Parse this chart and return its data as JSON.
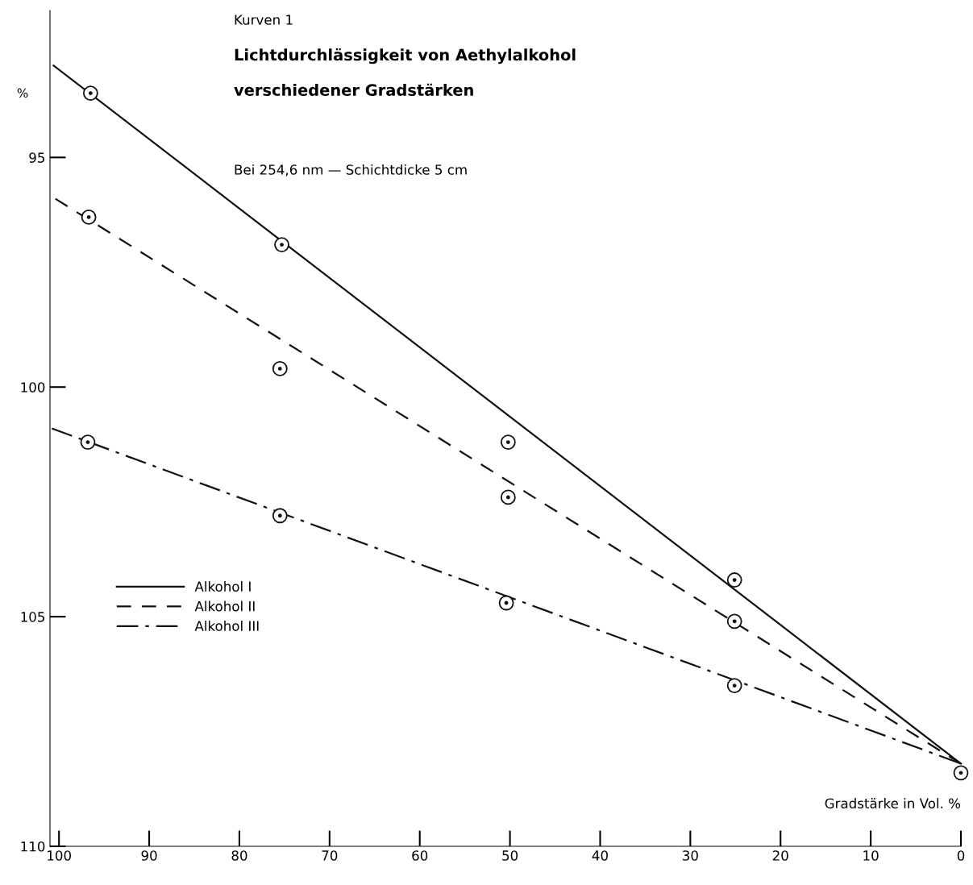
{
  "chart_data": {
    "type": "line",
    "title": "Lichtdurchlässigkeit von Aethylalkohol\n\nverschiedener Gradstärken",
    "subtitle": "Bei 254,6 nm — Schichtdicke 5 cm",
    "annotations": [
      "Kurven 1"
    ],
    "xlabel": "Gradstärke in Vol. %",
    "ylabel": "%",
    "xlim": [
      101,
      0
    ],
    "xticks": [
      100,
      90,
      80,
      70,
      60,
      50,
      40,
      30,
      20,
      10,
      0
    ],
    "ylim": [
      110,
      91.8
    ],
    "yticks": [
      95,
      100,
      105,
      110
    ],
    "grid": false,
    "legend": "bottom left",
    "series": [
      {
        "name": "Alkohol I",
        "color": "#111111",
        "line_style": "solid",
        "marker": "none",
        "x": [
          100.6,
          0
        ],
        "values": [
          93.0,
          108.2
        ]
      },
      {
        "name": "Alkohol II",
        "color": "#111111",
        "line_style": "dashed",
        "marker": "none",
        "x": [
          100.4,
          0
        ],
        "values": [
          95.9,
          108.2
        ]
      },
      {
        "name": "Alkohol III",
        "color": "#111111",
        "line_style": "dashdot",
        "marker": "none",
        "x": [
          100.8,
          0
        ],
        "values": [
          100.9,
          108.2
        ]
      },
      {
        "type": "scatter",
        "color": "#111111",
        "marker": "circle",
        "x": [
          96.5,
          75.3,
          50.2,
          25.1,
          0
        ],
        "values": [
          93.6,
          96.9,
          101.2,
          104.2,
          108.4
        ]
      },
      {
        "type": "scatter",
        "color": "#111111",
        "marker": "circle",
        "x": [
          96.7,
          75.5,
          50.2,
          25.1
        ],
        "values": [
          96.3,
          99.6,
          102.4,
          105.1
        ]
      },
      {
        "type": "scatter",
        "color": "#111111",
        "marker": "circle",
        "x": [
          96.8,
          75.5,
          50.4,
          25.1
        ],
        "values": [
          101.2,
          102.8,
          104.7,
          106.5
        ]
      }
    ]
  }
}
